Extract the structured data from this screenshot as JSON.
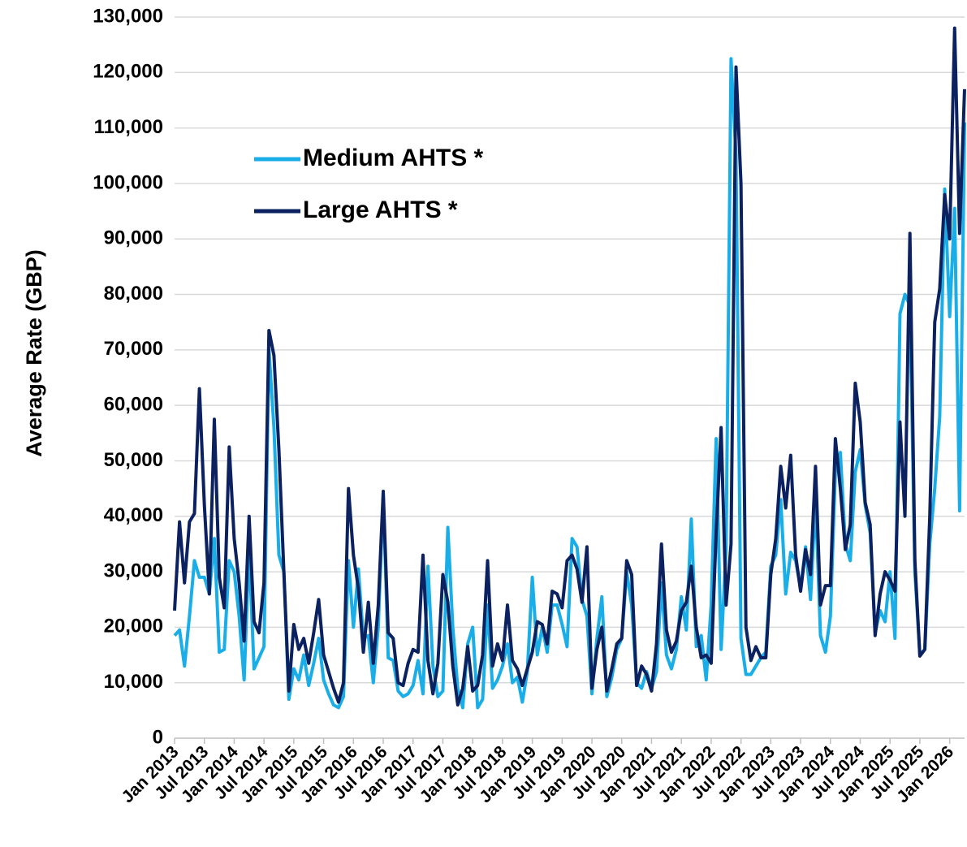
{
  "chart_data": {
    "type": "line",
    "y_label": "Average Rate (GBP)",
    "categories": [
      "Jan 2013",
      null,
      null,
      null,
      null,
      null,
      "Jul 2013",
      null,
      null,
      null,
      null,
      null,
      "Jan 2014",
      null,
      null,
      null,
      null,
      null,
      "Jul 2014",
      null,
      null,
      null,
      null,
      null,
      "Jan 2015",
      null,
      null,
      null,
      null,
      null,
      "Jul 2015",
      null,
      null,
      null,
      null,
      null,
      "Jan 2016",
      null,
      null,
      null,
      null,
      null,
      "Jul 2016",
      null,
      null,
      null,
      null,
      null,
      "Jan 2017",
      null,
      null,
      null,
      null,
      null,
      "Jul 2017",
      null,
      null,
      null,
      null,
      null,
      "Jan 2018",
      null,
      null,
      null,
      null,
      null,
      "Jul 2018",
      null,
      null,
      null,
      null,
      null,
      "Jan 2019",
      null,
      null,
      null,
      null,
      null,
      "Jul 2019",
      null,
      null,
      null,
      null,
      null,
      "Jan 2020",
      null,
      null,
      null,
      null,
      null,
      "Jul 2020",
      null,
      null,
      null,
      null,
      null,
      "Jan 2021",
      null,
      null,
      null,
      null,
      null,
      "Jul 2021",
      null,
      null,
      null,
      null,
      null,
      "Jan 2022",
      null,
      null,
      null,
      null,
      null,
      "Jul 2022",
      null,
      null,
      null,
      null,
      null,
      "Jan 2023",
      null,
      null,
      null,
      null,
      null,
      "Jul 2023",
      null,
      null,
      null,
      null,
      null,
      "Jan 2024",
      null,
      null,
      null,
      null,
      null,
      "Jul 2024",
      null,
      null,
      null,
      null,
      null,
      "Jan 2025",
      null,
      null,
      null,
      null,
      null,
      "Jul 2025",
      null,
      null,
      null,
      null,
      null,
      "Jan 2026",
      null,
      null,
      null
    ],
    "series": [
      {
        "name": "Medium AHTS *",
        "color": "#1aaee8",
        "values": [
          18500,
          19500,
          13000,
          22000,
          32000,
          29000,
          29000,
          26000,
          36000,
          15500,
          16000,
          32000,
          30000,
          22000,
          10500,
          34000,
          12500,
          14500,
          16500,
          70000,
          56000,
          33000,
          30000,
          7000,
          12500,
          10500,
          15000,
          9500,
          13500,
          18000,
          10500,
          8000,
          6000,
          5500,
          7500,
          32000,
          20000,
          30500,
          18000,
          18500,
          10000,
          20000,
          44000,
          14500,
          14000,
          8500,
          7500,
          8000,
          9500,
          14000,
          8000,
          31000,
          13000,
          7500,
          8500,
          38000,
          20000,
          9000,
          5500,
          17000,
          20000,
          5500,
          7000,
          24000,
          9000,
          10500,
          13000,
          17000,
          10000,
          11000,
          6500,
          12000,
          29000,
          15000,
          20000,
          15500,
          24000,
          24000,
          20500,
          16500,
          36000,
          34500,
          25000,
          22000,
          8000,
          18000,
          25500,
          7500,
          11000,
          16000,
          18000,
          30000,
          24000,
          10000,
          9000,
          12000,
          9000,
          12000,
          28000,
          15000,
          12500,
          16000,
          25500,
          19500,
          39500,
          16500,
          18500,
          10500,
          24000,
          54000,
          16000,
          34000,
          122500,
          105000,
          18000,
          11500,
          11500,
          13000,
          14500,
          15500,
          31000,
          33000,
          43000,
          26000,
          33500,
          32000,
          27000,
          34500,
          25000,
          43000,
          18500,
          15500,
          22000,
          48000,
          51500,
          35000,
          32000,
          48000,
          52000,
          42000,
          37000,
          19000,
          23000,
          21000,
          30000,
          18000,
          76500,
          80000,
          78000,
          30000,
          15000,
          16000,
          35000,
          45000,
          58000,
          99000,
          76000,
          95500,
          41000,
          111000
        ]
      },
      {
        "name": "Large AHTS *",
        "color": "#0b2160",
        "values": [
          23000,
          39000,
          28000,
          39000,
          40500,
          63000,
          42000,
          26000,
          57500,
          29000,
          23500,
          52500,
          36000,
          28000,
          17500,
          40000,
          21000,
          19000,
          28000,
          73500,
          69000,
          52000,
          30000,
          8500,
          20500,
          16000,
          18000,
          13500,
          19000,
          25000,
          15000,
          12000,
          9000,
          6500,
          10000,
          45000,
          33000,
          27000,
          15500,
          24500,
          13500,
          24000,
          44500,
          19000,
          18000,
          10000,
          9500,
          13500,
          16000,
          15500,
          33000,
          14000,
          8000,
          13500,
          29500,
          24500,
          13000,
          6000,
          9000,
          16500,
          8500,
          9500,
          15000,
          32000,
          13000,
          17000,
          14000,
          24000,
          14000,
          12500,
          9500,
          12500,
          15500,
          21000,
          20500,
          17000,
          26500,
          26000,
          23500,
          32000,
          33000,
          30500,
          24500,
          34500,
          9000,
          16000,
          20000,
          8500,
          12500,
          17000,
          18000,
          32000,
          29500,
          9500,
          13000,
          11500,
          8500,
          17000,
          35000,
          19500,
          15500,
          17500,
          23000,
          24500,
          31000,
          20000,
          14500,
          15000,
          13500,
          37000,
          56000,
          24000,
          35000,
          121000,
          100000,
          20000,
          14000,
          16500,
          14500,
          14500,
          29500,
          36000,
          49000,
          41500,
          51000,
          33000,
          26500,
          34000,
          29500,
          49000,
          24000,
          27500,
          27500,
          54000,
          45000,
          34000,
          38500,
          64000,
          57000,
          42500,
          38500,
          18500,
          26000,
          30000,
          28500,
          26500,
          57000,
          40000,
          91000,
          32000,
          14800,
          16000,
          40000,
          75000,
          81000,
          98000,
          90000,
          128000,
          91000,
          117000
        ]
      }
    ],
    "ylim": [
      0,
      130000
    ],
    "yticks": [
      0,
      {
        "value": 10000,
        "label": "10,000"
      },
      {
        "value": 20000,
        "label": "20,000"
      },
      {
        "value": 30000,
        "label": "30,000"
      },
      {
        "value": 40000,
        "label": "40,000"
      },
      {
        "value": 50000,
        "label": "50,000"
      },
      {
        "value": 60000,
        "label": "60,000"
      },
      {
        "value": 70000,
        "label": "70,000"
      },
      {
        "value": 80000,
        "label": "80,000"
      },
      {
        "value": 90000,
        "label": "90,000"
      },
      {
        "value": 100000,
        "label": "100,000"
      },
      {
        "value": 110000,
        "label": "110,000"
      },
      {
        "value": 120000,
        "label": "120,000"
      },
      {
        "value": 130000,
        "label": "130,000"
      }
    ],
    "grid": true,
    "legend": "upper-left"
  }
}
